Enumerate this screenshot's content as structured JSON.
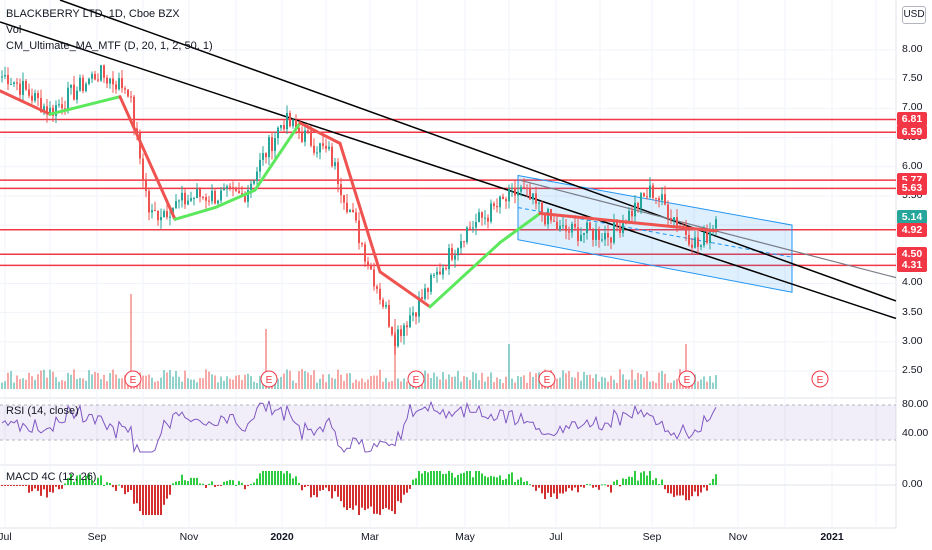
{
  "legend": {
    "symbol": "BLACKBERRY LTD, 1D, Cboe BZX",
    "vol": "Vol",
    "indicator": "CM_Ultimate_MA_MTF (D, 20, 1, 2, 50, 1)"
  },
  "currency_button": "USD",
  "rsi_legend": "RSI (14, close)",
  "macd_legend": "MACD 4C (12, 26)",
  "colors": {
    "up": "#26a69a",
    "down": "#ef5350",
    "line_red": "#f23645",
    "ma_up": "#5ce85c",
    "ma_down": "#ef5350",
    "trend": "#000000",
    "channel": "#2196f3",
    "rsi": "#7e57c2",
    "macd_up": "#2ecc40",
    "macd_down": "#d32f2f"
  },
  "price_axis_labels": [
    "8.00",
    "7.50",
    "7.00",
    "6.50",
    "6.00",
    "5.50",
    "5.00",
    "4.50",
    "4.00",
    "3.50",
    "3.00",
    "2.50"
  ],
  "rsi_axis_labels": [
    "80.00",
    "40.00"
  ],
  "macd_axis_labels": [
    "0.00"
  ],
  "x_axis_labels": [
    {
      "text": "Jul",
      "bold": false
    },
    {
      "text": "Sep",
      "bold": false
    },
    {
      "text": "Nov",
      "bold": false
    },
    {
      "text": "2020",
      "bold": true
    },
    {
      "text": "Mar",
      "bold": false
    },
    {
      "text": "May",
      "bold": false
    },
    {
      "text": "Jul",
      "bold": false
    },
    {
      "text": "Sep",
      "bold": false
    },
    {
      "text": "Nov",
      "bold": false
    },
    {
      "text": "2021",
      "bold": true
    }
  ],
  "earnings_marker": "E",
  "chart_data": {
    "type": "candlestick",
    "title": "BLACKBERRY LTD, 1D, Cboe BZX",
    "y_range": [
      2.3,
      8.3
    ],
    "horizontal_levels": [
      6.81,
      6.59,
      5.77,
      5.63,
      4.92,
      4.5,
      4.31
    ],
    "current_price": 5.14,
    "price_path": [
      {
        "x": "Jul 2019",
        "y": 7.55
      },
      {
        "x": "Aug 2019",
        "y": 6.95
      },
      {
        "x": "Sep 2019",
        "y": 7.6
      },
      {
        "x": "Sep 2019 end",
        "y": 7.35
      },
      {
        "x": "Oct 2019",
        "y": 5.15
      },
      {
        "x": "Nov 2019",
        "y": 5.5
      },
      {
        "x": "Dec 2019",
        "y": 5.5
      },
      {
        "x": "Jan 2020",
        "y": 6.8
      },
      {
        "x": "Feb 2020",
        "y": 6.2
      },
      {
        "x": "Mar 2020",
        "y": 3.1
      },
      {
        "x": "Apr 2020",
        "y": 3.7
      },
      {
        "x": "May 2020",
        "y": 4.9
      },
      {
        "x": "Jun 2020",
        "y": 5.6
      },
      {
        "x": "Jul 2020",
        "y": 4.9
      },
      {
        "x": "Aug 2020",
        "y": 4.85
      },
      {
        "x": "Sep 2020",
        "y": 5.6
      },
      {
        "x": "Oct 2020",
        "y": 4.6
      },
      {
        "x": "Oct 2020 last",
        "y": 5.14
      }
    ],
    "moving_average": [
      {
        "x": "Jul 2019",
        "y": 7.3
      },
      {
        "x": "Aug 2019",
        "y": 6.9
      },
      {
        "x": "Sep 2019",
        "y": 7.2
      },
      {
        "x": "Oct 2019",
        "y": 5.1
      },
      {
        "x": "Nov 2019",
        "y": 5.3
      },
      {
        "x": "Dec 2019",
        "y": 5.6
      },
      {
        "x": "Jan 2020",
        "y": 6.75
      },
      {
        "x": "Feb 2020",
        "y": 6.4
      },
      {
        "x": "Mar 2020",
        "y": 4.2
      },
      {
        "x": "Apr 2020",
        "y": 3.6
      },
      {
        "x": "May 2020",
        "y": 4.7
      },
      {
        "x": "Jun 2020",
        "y": 5.2
      },
      {
        "x": "Oct 2020",
        "y": 4.9
      }
    ],
    "rsi": {
      "label": "RSI (14, close)",
      "levels": [
        70,
        30
      ],
      "range": [
        0,
        100
      ]
    },
    "macd": {
      "label": "MACD 4C (12, 26)",
      "zero": 0.0
    },
    "earnings_markers": [
      "Oct 2019",
      "Dec 2019",
      "Mar 2020",
      "Jun 2020",
      "Sep 2020",
      "Dec 2020"
    ]
  }
}
